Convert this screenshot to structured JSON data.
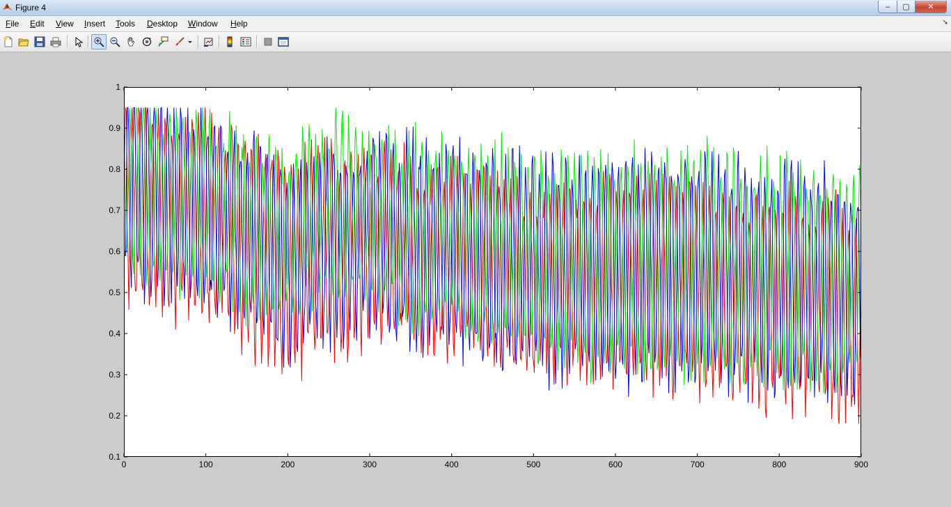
{
  "window": {
    "title": "Figure 4",
    "controls": {
      "minimize": "–",
      "maximize": "▢",
      "close": "✕"
    }
  },
  "menu": {
    "items": [
      "File",
      "Edit",
      "View",
      "Insert",
      "Tools",
      "Desktop",
      "Window",
      "Help"
    ],
    "dock_arrow": "➘"
  },
  "toolbar": {
    "buttons": [
      {
        "name": "new-figure-icon"
      },
      {
        "name": "open-file-icon"
      },
      {
        "name": "save-figure-icon"
      },
      {
        "name": "print-figure-icon"
      },
      {
        "name": "edit-plot-arrow-icon"
      },
      {
        "name": "zoom-in-icon",
        "active": true
      },
      {
        "name": "zoom-out-icon"
      },
      {
        "name": "pan-hand-icon"
      },
      {
        "name": "rotate-3d-icon"
      },
      {
        "name": "data-cursor-icon"
      },
      {
        "name": "brush-icon"
      },
      {
        "name": "link-plot-icon"
      },
      {
        "name": "insert-colorbar-icon"
      },
      {
        "name": "insert-legend-icon"
      },
      {
        "name": "hide-plot-tools-icon"
      },
      {
        "name": "show-plot-tools-icon"
      }
    ]
  },
  "chart_data": {
    "type": "line",
    "title": "",
    "xlabel": "",
    "ylabel": "",
    "xlim": [
      0,
      900
    ],
    "ylim": [
      0.1,
      1
    ],
    "xticks": [
      0,
      100,
      200,
      300,
      400,
      500,
      600,
      700,
      800,
      900
    ],
    "yticks": [
      0.1,
      0.2,
      0.3,
      0.4,
      0.5,
      0.6,
      0.7,
      0.8,
      0.9,
      1
    ],
    "grid": false,
    "legend": "none",
    "x_step": 1,
    "series": [
      {
        "color": "#ff0000",
        "trend": [
          [
            0,
            0.72
          ],
          [
            100,
            0.68
          ],
          [
            200,
            0.57
          ],
          [
            300,
            0.62
          ],
          [
            400,
            0.58
          ],
          [
            500,
            0.53
          ],
          [
            600,
            0.52
          ],
          [
            700,
            0.51
          ],
          [
            800,
            0.48
          ],
          [
            900,
            0.45
          ]
        ],
        "amplitude": [
          [
            0,
            0.22
          ],
          [
            200,
            0.25
          ],
          [
            400,
            0.2
          ],
          [
            900,
            0.25
          ]
        ],
        "period": 8.1,
        "phase": 0.0
      },
      {
        "color": "#00ee00",
        "trend": [
          [
            0,
            0.76
          ],
          [
            100,
            0.72
          ],
          [
            200,
            0.63
          ],
          [
            260,
            0.73
          ],
          [
            300,
            0.68
          ],
          [
            400,
            0.64
          ],
          [
            500,
            0.58
          ],
          [
            600,
            0.57
          ],
          [
            700,
            0.58
          ],
          [
            800,
            0.55
          ],
          [
            900,
            0.54
          ]
        ],
        "amplitude": [
          [
            0,
            0.2
          ],
          [
            300,
            0.2
          ],
          [
            600,
            0.25
          ],
          [
            900,
            0.25
          ]
        ],
        "period": 8.1,
        "phase": 2.1
      },
      {
        "color": "#0000ff",
        "trend": [
          [
            0,
            0.76
          ],
          [
            100,
            0.7
          ],
          [
            200,
            0.58
          ],
          [
            300,
            0.64
          ],
          [
            400,
            0.6
          ],
          [
            500,
            0.56
          ],
          [
            600,
            0.55
          ],
          [
            700,
            0.56
          ],
          [
            800,
            0.53
          ],
          [
            900,
            0.51
          ]
        ],
        "amplitude": [
          [
            0,
            0.22
          ],
          [
            300,
            0.22
          ],
          [
            600,
            0.26
          ],
          [
            900,
            0.25
          ]
        ],
        "period": 8.1,
        "phase": 4.2
      }
    ]
  }
}
